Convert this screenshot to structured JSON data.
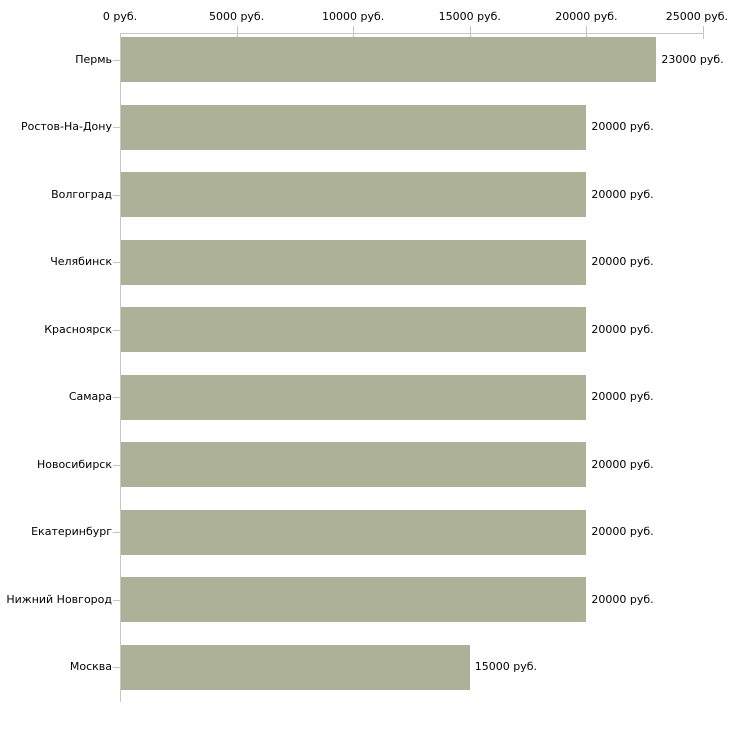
{
  "chart_data": {
    "type": "bar",
    "orientation": "horizontal",
    "categories": [
      "Пермь",
      "Ростов-На-Дону",
      "Волгоград",
      "Челябинск",
      "Красноярск",
      "Самара",
      "Новосибирск",
      "Екатеринбург",
      "Нижний Новгород",
      "Москва"
    ],
    "values": [
      23000,
      20000,
      20000,
      20000,
      20000,
      20000,
      20000,
      20000,
      20000,
      15000
    ],
    "value_labels": [
      "23000 руб.",
      "20000 руб.",
      "20000 руб.",
      "20000 руб.",
      "20000 руб.",
      "20000 руб.",
      "20000 руб.",
      "20000 руб.",
      "20000 руб.",
      "15000 руб."
    ],
    "x_ticks": [
      0,
      5000,
      10000,
      15000,
      20000,
      25000
    ],
    "x_tick_labels": [
      "0 руб.",
      "5000 руб.",
      "10000 руб.",
      "15000 руб.",
      "20000 руб.",
      "25000 руб."
    ],
    "xlim": [
      0,
      25000
    ],
    "unit": "руб.",
    "title": "",
    "xlabel": "",
    "ylabel": "",
    "grid": false,
    "legend": false,
    "colors": {
      "bar": "#acb197",
      "axis": "#c6c6c6",
      "tick": "#c9c9a0",
      "text": "#000000",
      "background": "#ffffff"
    }
  }
}
